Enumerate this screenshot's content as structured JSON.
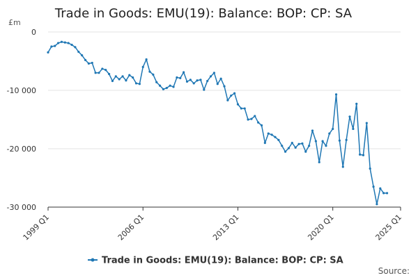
{
  "chart_data": {
    "type": "line",
    "title": "Trade in Goods: EMU(19): Balance: BOP: CP: SA",
    "unit_label": "£m",
    "ylim": [
      -30000,
      0
    ],
    "yticks": [
      0,
      -10000,
      -20000,
      -30000
    ],
    "ytick_labels": [
      "0",
      "-10 000",
      "-20 000",
      "-30 000"
    ],
    "xlim": [
      1999.0,
      2025.0
    ],
    "xticks": [
      1999.0,
      2006.0,
      2013.0,
      2020.0,
      2025.0
    ],
    "xtick_labels": [
      "1999 Q1",
      "2006 Q1",
      "2013 Q1",
      "2020 Q1",
      "2025 Q1"
    ],
    "grid": true,
    "legend_position": "bottom",
    "source_label": "Source:",
    "series": [
      {
        "name": "Trade in Goods: EMU(19): Balance: BOP: CP: SA",
        "color": "#1f77b4",
        "x": [
          1999.0,
          1999.25,
          1999.5,
          1999.75,
          2000.0,
          2000.25,
          2000.5,
          2000.75,
          2001.0,
          2001.25,
          2001.5,
          2001.75,
          2002.0,
          2002.25,
          2002.5,
          2002.75,
          2003.0,
          2003.25,
          2003.5,
          2003.75,
          2004.0,
          2004.25,
          2004.5,
          2004.75,
          2005.0,
          2005.25,
          2005.5,
          2005.75,
          2006.0,
          2006.25,
          2006.5,
          2006.75,
          2007.0,
          2007.25,
          2007.5,
          2007.75,
          2008.0,
          2008.25,
          2008.5,
          2008.75,
          2009.0,
          2009.25,
          2009.5,
          2009.75,
          2010.0,
          2010.25,
          2010.5,
          2010.75,
          2011.0,
          2011.25,
          2011.5,
          2011.75,
          2012.0,
          2012.25,
          2012.5,
          2012.75,
          2013.0,
          2013.25,
          2013.5,
          2013.75,
          2014.0,
          2014.25,
          2014.5,
          2014.75,
          2015.0,
          2015.25,
          2015.5,
          2015.75,
          2016.0,
          2016.25,
          2016.5,
          2016.75,
          2017.0,
          2017.25,
          2017.5,
          2017.75,
          2018.0,
          2018.25,
          2018.5,
          2018.75,
          2019.0,
          2019.25,
          2019.5,
          2019.75,
          2020.0,
          2020.25,
          2020.5,
          2020.75,
          2021.0,
          2021.25,
          2021.5,
          2021.75,
          2022.0,
          2022.25,
          2022.5,
          2022.75,
          2023.0,
          2023.25,
          2023.5,
          2023.75,
          2024.0
        ],
        "values": [
          -3500,
          -2500,
          -2400,
          -1900,
          -1700,
          -1800,
          -1900,
          -2200,
          -2600,
          -3400,
          -4000,
          -4800,
          -5400,
          -5300,
          -7000,
          -7000,
          -6300,
          -6500,
          -7200,
          -8400,
          -7600,
          -8100,
          -7600,
          -8300,
          -7400,
          -7800,
          -8800,
          -8900,
          -6000,
          -4700,
          -6800,
          -7300,
          -8600,
          -9200,
          -9800,
          -9600,
          -9200,
          -9400,
          -7800,
          -7900,
          -6900,
          -8500,
          -8200,
          -8800,
          -8300,
          -8200,
          -9900,
          -8400,
          -7600,
          -7000,
          -8900,
          -8000,
          -9300,
          -11700,
          -10900,
          -10500,
          -12400,
          -13100,
          -13100,
          -15000,
          -14900,
          -14400,
          -15500,
          -16000,
          -19000,
          -17400,
          -17600,
          -18000,
          -18500,
          -19500,
          -20500,
          -19900,
          -19000,
          -19800,
          -19200,
          -19100,
          -20500,
          -19500,
          -16900,
          -18700,
          -22300,
          -18700,
          -19500,
          -17400,
          -16600,
          -10700,
          -18600,
          -23100,
          -18500,
          -14500,
          -16600,
          -12300,
          -21000,
          -21100,
          -15600,
          -23400,
          -26500,
          -29500,
          -26800,
          -27600,
          -27600
        ]
      }
    ]
  }
}
